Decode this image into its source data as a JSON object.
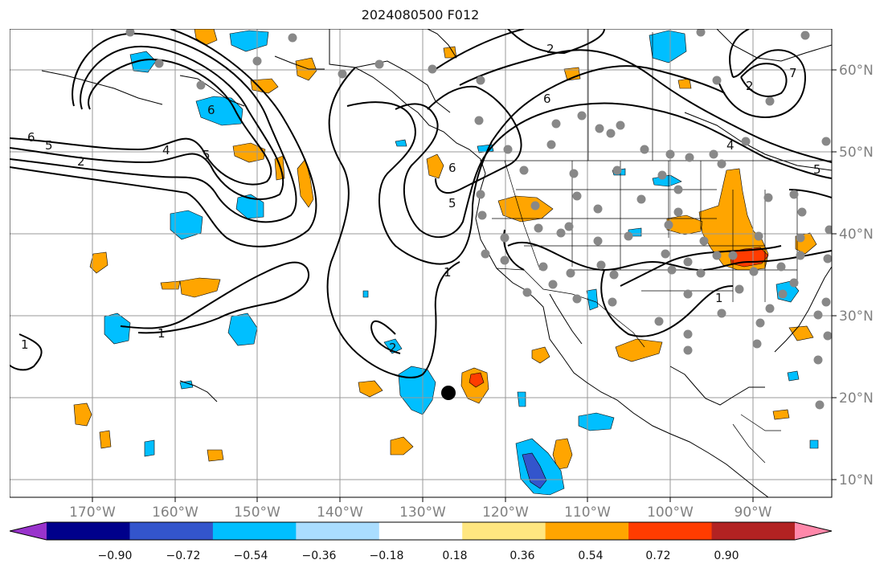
{
  "title": "2024080500 F012",
  "map": {
    "lon_labels": [
      "170°W",
      "160°W",
      "150°W",
      "140°W",
      "130°W",
      "120°W",
      "110°W",
      "100°W",
      "90°W"
    ],
    "lat_labels": [
      "60°N",
      "50°N",
      "40°N",
      "30°N",
      "20°N",
      "10°N"
    ],
    "contour_labels": [
      "1",
      "1",
      "1",
      "1",
      "2",
      "2",
      "2",
      "2",
      "4",
      "4",
      "5",
      "5",
      "5",
      "5",
      "6",
      "6",
      "6",
      "6",
      "7"
    ],
    "marker": "black-dot"
  },
  "colorbar": {
    "labels": [
      "−0.90",
      "−0.72",
      "−0.54",
      "−0.36",
      "−0.18",
      "0.18",
      "0.36",
      "0.54",
      "0.72",
      "0.90"
    ],
    "colors": [
      "#9933cc",
      "#00008b",
      "#3355cc",
      "#00bfff",
      "#aaddff",
      "#ffffff",
      "#ffe680",
      "#ffa500",
      "#ff3c00",
      "#b22222",
      "#ff88aa"
    ]
  }
}
